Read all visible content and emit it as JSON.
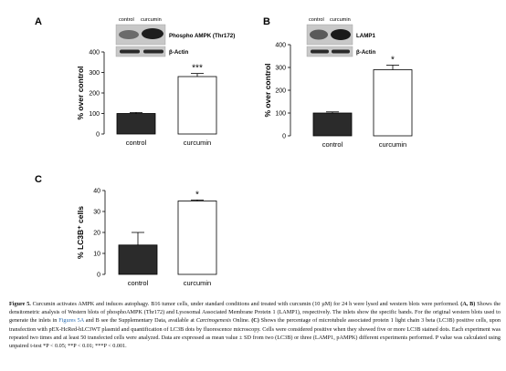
{
  "panels": [
    {
      "letter": "A",
      "inset": {
        "lanes": [
          "control",
          "curcumin"
        ],
        "rows": [
          "Phospho AMPK (Thr172)",
          "β-Actin"
        ]
      },
      "chart_data": {
        "type": "bar",
        "categories": [
          "control",
          "curcumin"
        ],
        "values": [
          100,
          280
        ],
        "errors": [
          5,
          15
        ],
        "significance": [
          "",
          "***"
        ],
        "ylabel": "% over control",
        "ylim": [
          0,
          400
        ],
        "yticks": [
          0,
          100,
          200,
          300,
          400
        ],
        "bar_colors": [
          "#2b2b2b",
          "#ffffff"
        ]
      }
    },
    {
      "letter": "B",
      "inset": {
        "lanes": [
          "control",
          "curcumin"
        ],
        "rows": [
          "LAMP1",
          "β-Actin"
        ]
      },
      "chart_data": {
        "type": "bar",
        "categories": [
          "control",
          "curcumin"
        ],
        "values": [
          100,
          290
        ],
        "errors": [
          5,
          20
        ],
        "significance": [
          "",
          "*"
        ],
        "ylabel": "% over control",
        "ylim": [
          0,
          400
        ],
        "yticks": [
          0,
          100,
          200,
          300,
          400
        ],
        "bar_colors": [
          "#2b2b2b",
          "#ffffff"
        ]
      }
    },
    {
      "letter": "C",
      "chart_data": {
        "type": "bar",
        "categories": [
          "control",
          "curcumin"
        ],
        "values": [
          14,
          35
        ],
        "errors": [
          6,
          0.5
        ],
        "significance": [
          "",
          "*"
        ],
        "ylabel": "% LC3B⁺ cells",
        "ylim": [
          0,
          40
        ],
        "yticks": [
          0,
          10,
          20,
          30,
          40
        ],
        "bar_colors": [
          "#2b2b2b",
          "#ffffff"
        ]
      }
    }
  ],
  "caption": {
    "label": "Figure 5.",
    "title": "Curcumin activates AMPK and induces autophagy.",
    "t1": "B16 tumor cells, under standard conditions and treated with curcumin (10 µM) for 24 h were lysed and western blots were performed.",
    "t2": "(A, B)",
    "t3": "Shows the densitometric analysis of Western blots of phosphoAMPK (Thr172) and Lysosomal Associated Membrane Protein 1 (LAMP1), respectively. The inlets show the specific bands. For the original western blots used to generate the inlets in",
    "link": "Figures 5A",
    "t4": "and B see the Supplementary Data, available at",
    "journal": "Carcinogenesis",
    "t5": "Online.",
    "t6": "(C)",
    "t7": "Shows the percentage of microtubule associated protein 1 light chain 3 beta (LC3B) positive cells, upon transfection with pEX-HcRed-hLC3WT plasmid and quantification of LC3B dots by fluorescence microscopy. Cells were considered positive when they showed five or more LC3B stained dots. Each experiment was repeated two times and at least 50 transfected cells were analyzed. Data are expressed as mean value ± SD from two (LC3B) or three (LAMP1, pAMPK) different experiments performed. P value was calculated using unpaired t-test *P < 0.05; **P < 0.01; ***P < 0.001."
  }
}
